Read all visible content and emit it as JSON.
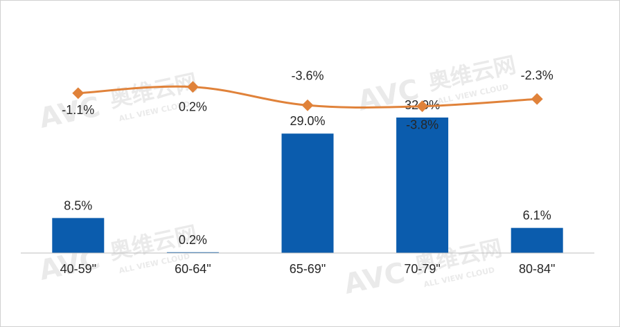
{
  "chart_data": {
    "type": "bar",
    "categories": [
      "40-59\"",
      "60-64\"",
      "65-69\"",
      "70-79\"",
      "80-84\""
    ],
    "series": [
      {
        "type": "bar",
        "values": [
          8.5,
          0.2,
          29.0,
          32.9,
          6.1
        ],
        "labels": [
          "8.5%",
          "0.2%",
          "29.0%",
          "32.9%",
          "6.1%"
        ],
        "color": "#0b5cad"
      },
      {
        "type": "line",
        "values": [
          -1.1,
          0.2,
          -3.6,
          -3.8,
          -2.3
        ],
        "labels": [
          "-1.1%",
          "0.2%",
          "-3.6%",
          "-3.8%",
          "-2.3%"
        ],
        "color": "#e0823a"
      }
    ],
    "title": "",
    "xlabel": "",
    "ylabel": "",
    "grid": false,
    "legend": "none"
  },
  "watermark": {
    "text": "奥维云网",
    "sub": "ALL VIEW CLOUD",
    "logo": "AVC"
  }
}
